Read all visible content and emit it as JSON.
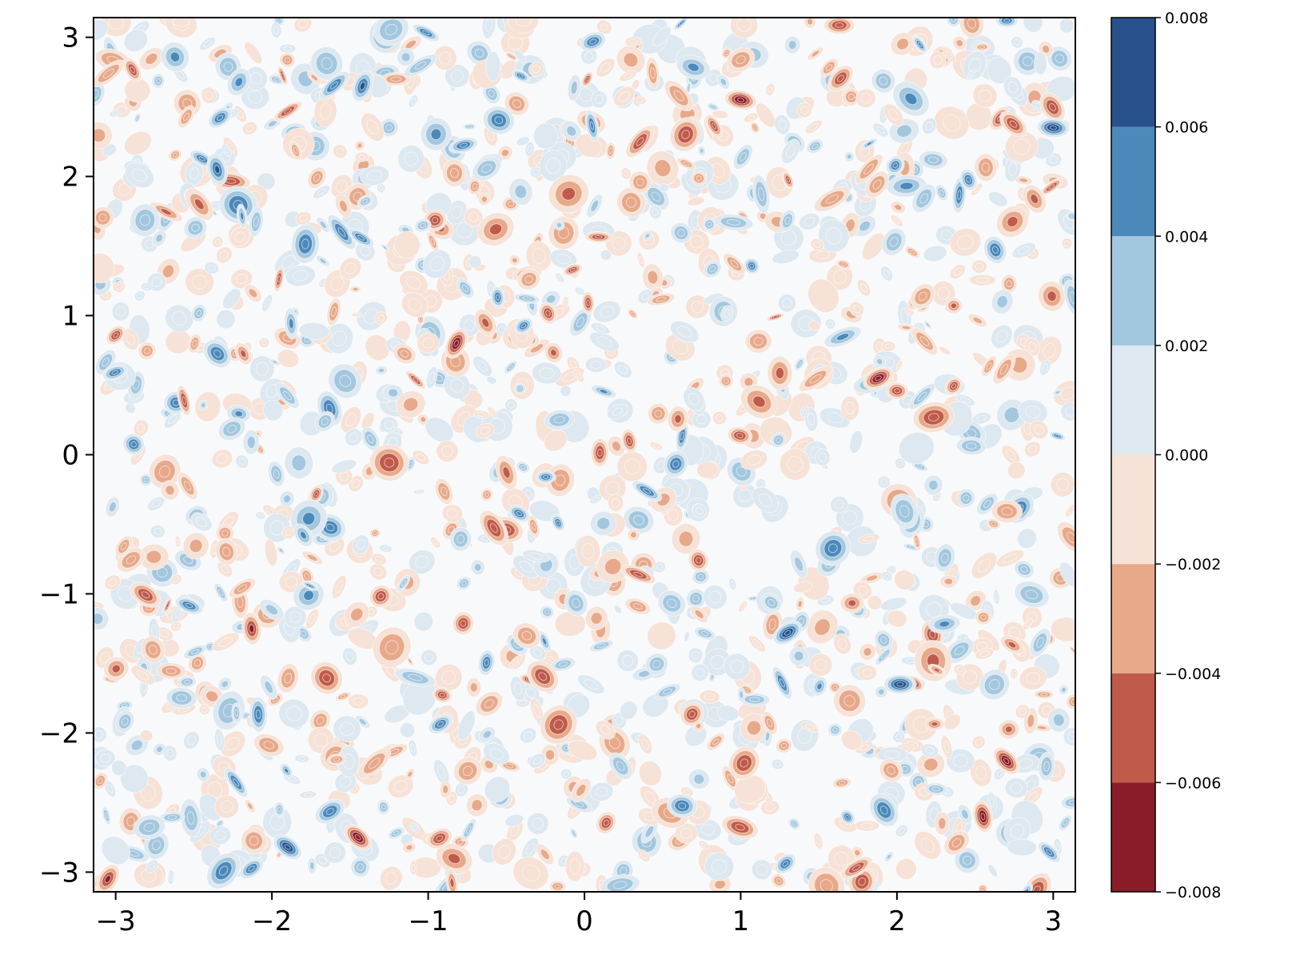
{
  "chart_data": {
    "type": "heatmap",
    "title": "",
    "xlabel": "",
    "ylabel": "",
    "xlim": [
      -3.14159,
      3.14159
    ],
    "ylim": [
      -3.14159,
      3.14159
    ],
    "x_ticks": [
      -3,
      -2,
      -1,
      0,
      1,
      2,
      3
    ],
    "x_tick_labels": [
      "−3",
      "−2",
      "−1",
      "0",
      "1",
      "2",
      "3"
    ],
    "y_ticks": [
      -3,
      -2,
      -1,
      0,
      1,
      2,
      3
    ],
    "y_tick_labels": [
      "−3",
      "−2",
      "−1",
      "0",
      "1",
      "2",
      "3"
    ],
    "grid": false,
    "colormap": "RdBu",
    "field_description": "noisy filled-contour field with many small patches fluctuating around zero",
    "colorbar": {
      "levels": [
        -0.008,
        -0.006,
        -0.004,
        -0.002,
        0.0,
        0.002,
        0.004,
        0.006,
        0.008
      ],
      "tick_labels": [
        "−0.008",
        "−0.006",
        "−0.004",
        "−0.002",
        "0.000",
        "0.002",
        "0.004",
        "0.006",
        "0.008"
      ],
      "band_colors": [
        "#8a1c29",
        "#c05a4a",
        "#e7a98a",
        "#f6e2d6",
        "#dde8f0",
        "#a2c7de",
        "#4b89bb",
        "#28518b"
      ]
    },
    "features": [
      {
        "x": 2.02,
        "y": -1.65,
        "value": 0.0075
      },
      {
        "x": -1.9,
        "y": -2.82,
        "value": 0.007
      },
      {
        "x": -2.35,
        "y": 2.05,
        "value": 0.0065
      },
      {
        "x": -1.42,
        "y": 2.65,
        "value": 0.0062
      },
      {
        "x": 1.3,
        "y": -1.28,
        "value": 0.0068
      },
      {
        "x": 3.0,
        "y": 2.35,
        "value": 0.0066
      },
      {
        "x": -1.45,
        "y": -2.75,
        "value": -0.0075
      },
      {
        "x": 2.55,
        "y": -2.6,
        "value": -0.007
      },
      {
        "x": -0.82,
        "y": 0.8,
        "value": -0.0072
      },
      {
        "x": 1.88,
        "y": 0.55,
        "value": -0.007
      },
      {
        "x": 1.0,
        "y": 2.55,
        "value": -0.0068
      },
      {
        "x": 2.7,
        "y": -2.2,
        "value": -0.0068
      },
      {
        "x": -2.13,
        "y": -1.25,
        "value": -0.0065
      },
      {
        "x": -3.05,
        "y": -3.05,
        "value": -0.0065
      }
    ]
  }
}
